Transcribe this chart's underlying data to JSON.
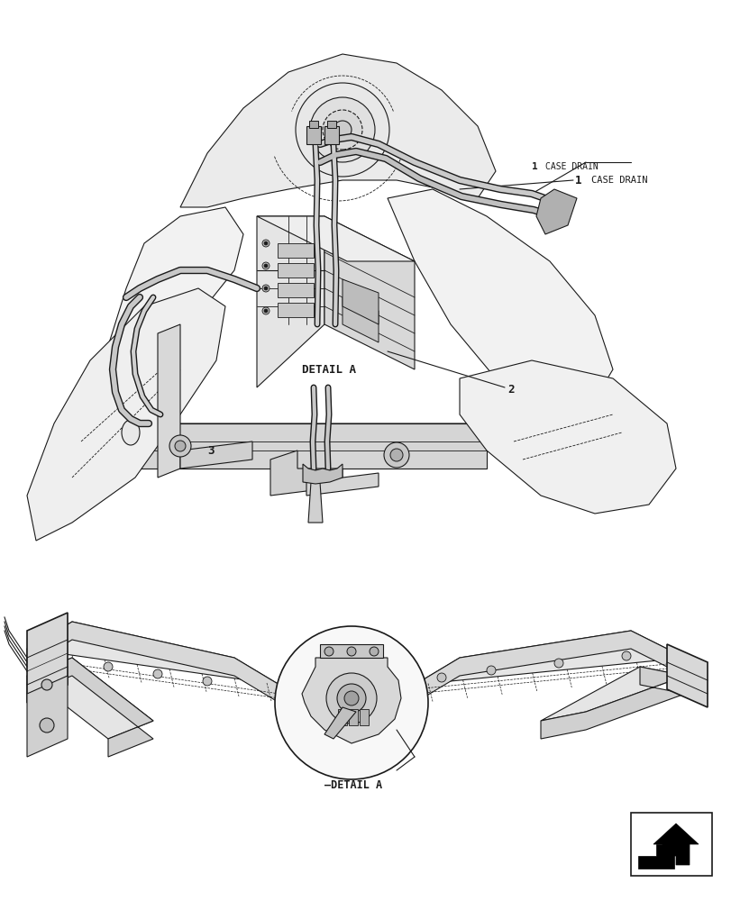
{
  "background_color": "#ffffff",
  "line_color": "#1a1a1a",
  "label1": "1",
  "label1_text": "CASE DRAIN",
  "label2": "2",
  "label3": "3",
  "detail_a_upper": "DETAIL A",
  "detail_a_lower": "DETAIL A"
}
